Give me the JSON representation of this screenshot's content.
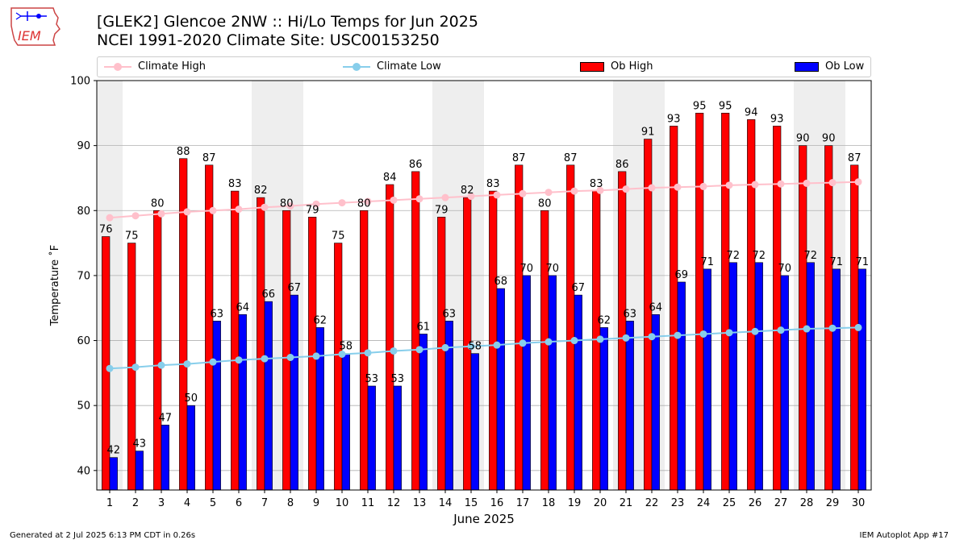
{
  "header": {
    "title_line1": "[GLEK2] Glencoe 2NW :: Hi/Lo Temps for Jun 2025",
    "title_line2": "NCEI 1991-2020 Climate Site: USC00153250",
    "logo_text": "IEM"
  },
  "legend": {
    "climate_high": "Climate High",
    "climate_low": "Climate Low",
    "ob_high": "Ob High",
    "ob_low": "Ob Low"
  },
  "footer": {
    "generated": "Generated at 2 Jul 2025 6:13 PM CDT in 0.26s",
    "app": "IEM Autoplot App #17"
  },
  "colors": {
    "ob_high": "#ff0000",
    "ob_low": "#0000ff",
    "climate_high": "#ffc0cb",
    "climate_low": "#87ceeb",
    "weekend_shade": "#eeeeee",
    "grid": "#b0b0b0"
  },
  "chart_data": {
    "type": "bar",
    "xlabel": "June 2025",
    "ylabel": "Temperature ˚F",
    "ylim": [
      37,
      100
    ],
    "yticks": [
      40,
      50,
      60,
      70,
      80,
      90,
      100
    ],
    "grid": "horizontal",
    "legend_position": "top",
    "categories": [
      "1",
      "2",
      "3",
      "4",
      "5",
      "6",
      "7",
      "8",
      "9",
      "10",
      "11",
      "12",
      "13",
      "14",
      "15",
      "16",
      "17",
      "18",
      "19",
      "20",
      "21",
      "22",
      "23",
      "24",
      "25",
      "26",
      "27",
      "28",
      "29",
      "30"
    ],
    "shaded_days": [
      1,
      7,
      8,
      14,
      15,
      21,
      22,
      28,
      29
    ],
    "series": [
      {
        "name": "Ob High",
        "kind": "bar",
        "values": [
          76,
          75,
          80,
          88,
          87,
          83,
          82,
          80,
          79,
          75,
          80,
          84,
          86,
          79,
          82,
          83,
          87,
          80,
          87,
          83,
          86,
          91,
          93,
          95,
          95,
          94,
          93,
          90,
          90,
          87
        ]
      },
      {
        "name": "Ob Low",
        "kind": "bar",
        "values": [
          42,
          43,
          47,
          50,
          63,
          64,
          66,
          67,
          62,
          58,
          53,
          53,
          61,
          63,
          58,
          68,
          70,
          70,
          67,
          62,
          63,
          64,
          69,
          71,
          72,
          72,
          70,
          72,
          71,
          71
        ]
      },
      {
        "name": "Climate High",
        "kind": "line",
        "values": [
          78.9,
          79.2,
          79.5,
          79.8,
          80.0,
          80.2,
          80.5,
          80.7,
          81.0,
          81.2,
          81.4,
          81.6,
          81.8,
          82.0,
          82.2,
          82.4,
          82.6,
          82.8,
          83.0,
          83.1,
          83.3,
          83.5,
          83.6,
          83.7,
          83.9,
          84.0,
          84.1,
          84.2,
          84.3,
          84.4
        ]
      },
      {
        "name": "Climate Low",
        "kind": "line",
        "values": [
          55.7,
          55.9,
          56.2,
          56.4,
          56.7,
          57.0,
          57.2,
          57.4,
          57.6,
          57.9,
          58.1,
          58.4,
          58.6,
          58.9,
          59.1,
          59.3,
          59.6,
          59.8,
          60.0,
          60.2,
          60.4,
          60.6,
          60.8,
          61.0,
          61.2,
          61.4,
          61.6,
          61.8,
          61.9,
          62.0
        ]
      }
    ]
  }
}
